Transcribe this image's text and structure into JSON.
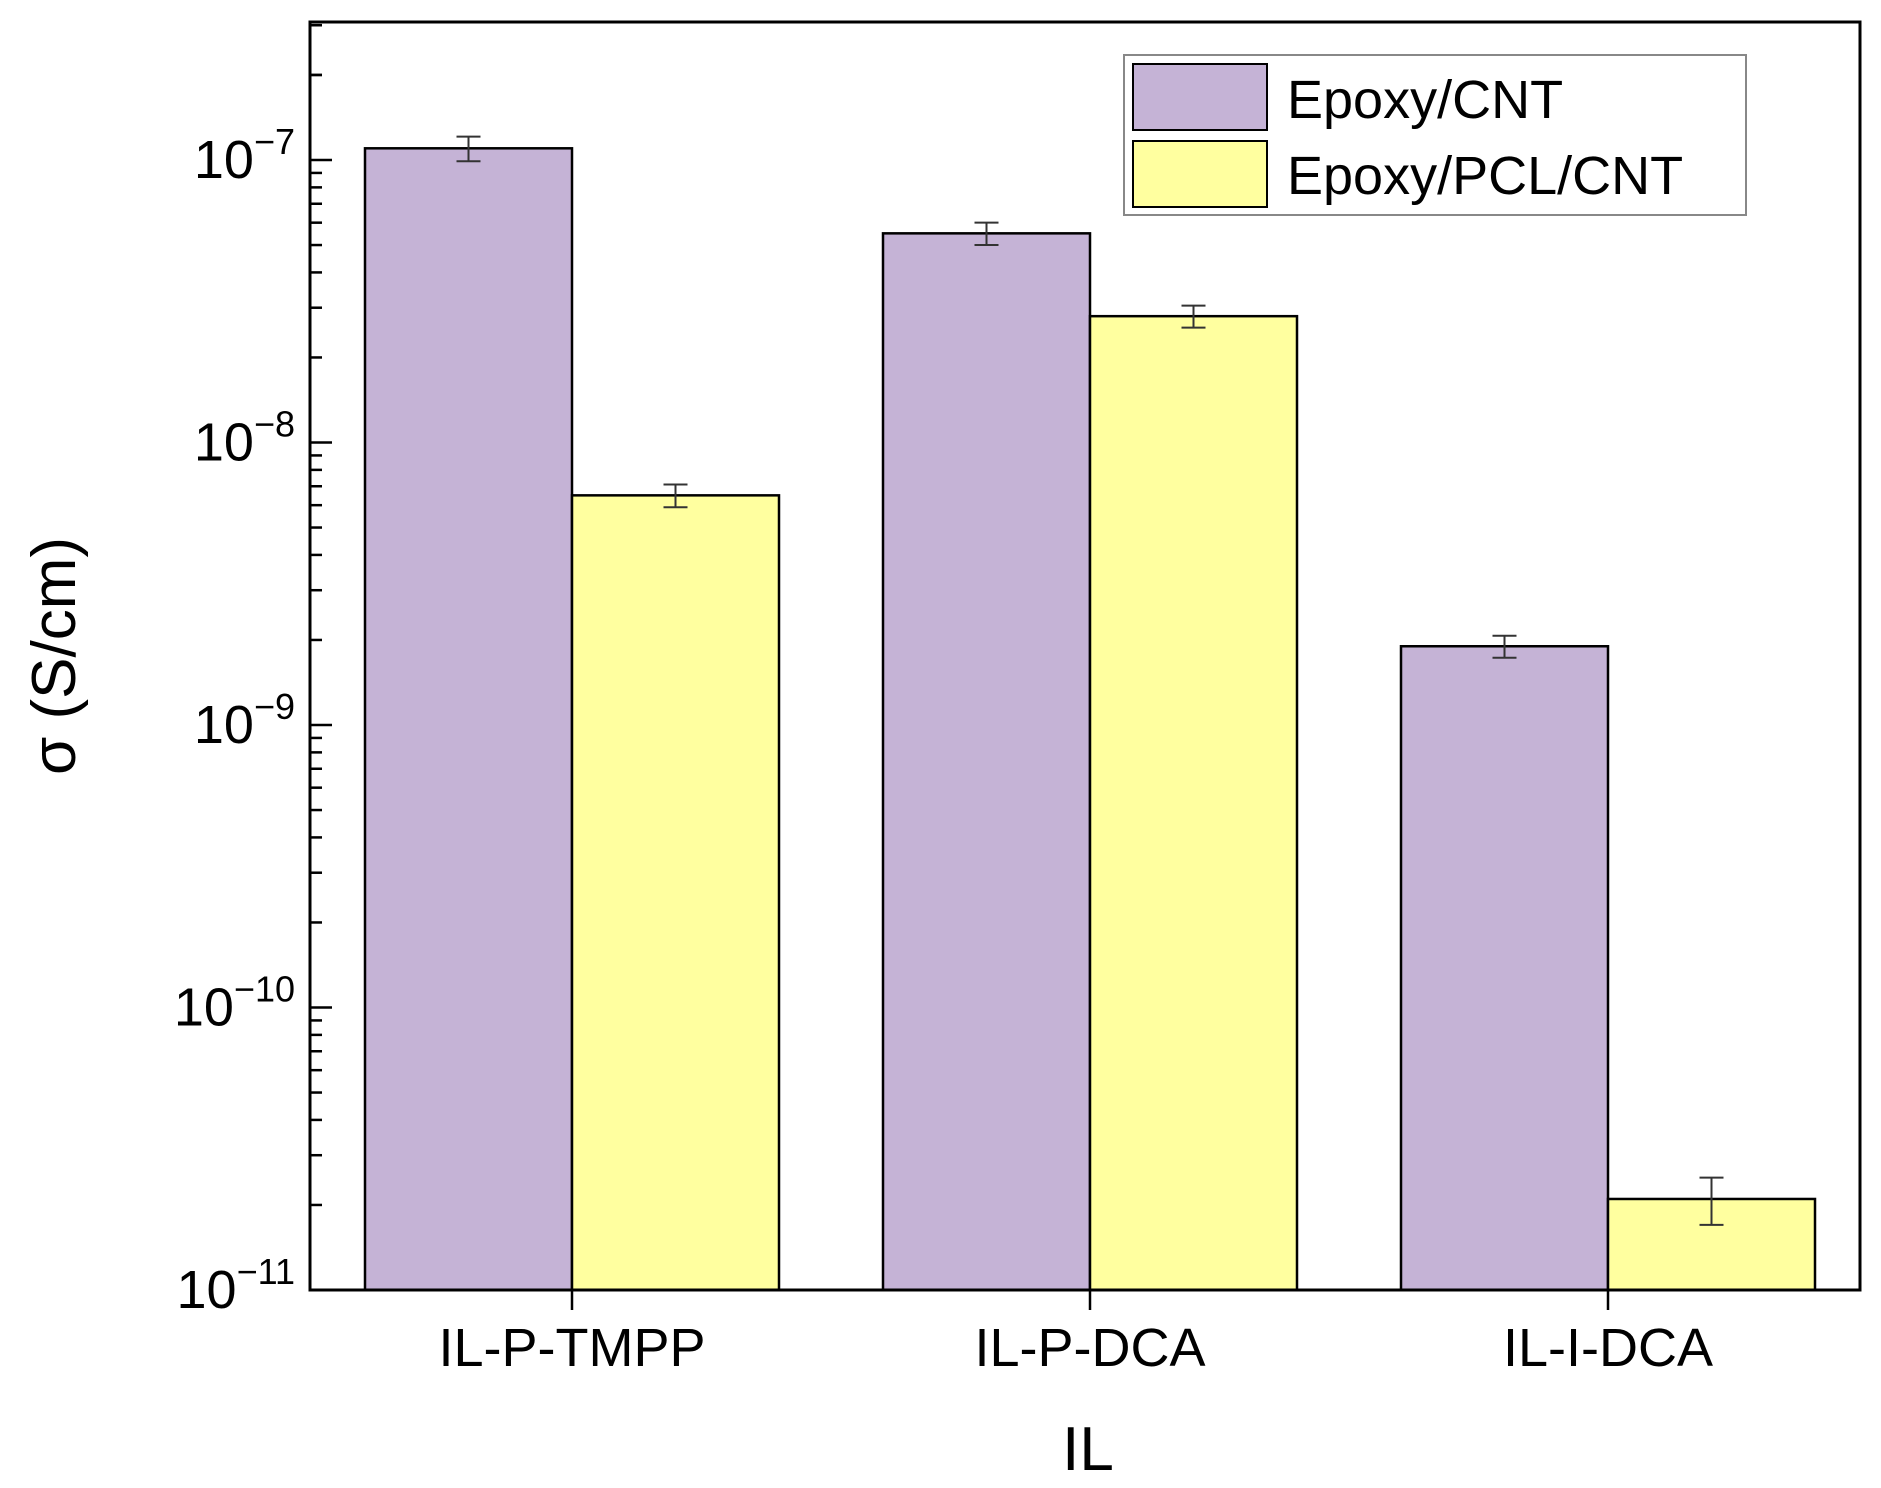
{
  "chart_data": {
    "type": "bar",
    "title": "",
    "xlabel": "IL",
    "ylabel": "σ (S/cm)",
    "yscale": "log",
    "ylim": [
      1e-11,
      3e-07
    ],
    "y_ticks": [
      {
        "value": 1e-07,
        "base": "10",
        "exp": "−7"
      },
      {
        "value": 1e-08,
        "base": "10",
        "exp": "−8"
      },
      {
        "value": 1e-09,
        "base": "10",
        "exp": "−9"
      },
      {
        "value": 1e-10,
        "base": "10",
        "exp": "−10"
      },
      {
        "value": 1e-11,
        "base": "10",
        "exp": "−11"
      }
    ],
    "categories": [
      "IL-P-TMPP",
      "IL-P-DCA",
      "IL-I-DCA"
    ],
    "series": [
      {
        "name": "Epoxy/CNT",
        "color": "#c5b3d6",
        "values": [
          1.1e-07,
          5.5e-08,
          1.9e-09
        ],
        "errors": [
          1.1e-08,
          5e-09,
          1.7e-10
        ]
      },
      {
        "name": "Epoxy/PCL/CNT",
        "color": "#ffff9f",
        "values": [
          6.5e-09,
          2.8e-08,
          2.1e-11
        ],
        "errors": [
          6e-10,
          2.5e-09,
          4e-12
        ]
      }
    ],
    "legend_position": "top-right",
    "grid": false
  }
}
